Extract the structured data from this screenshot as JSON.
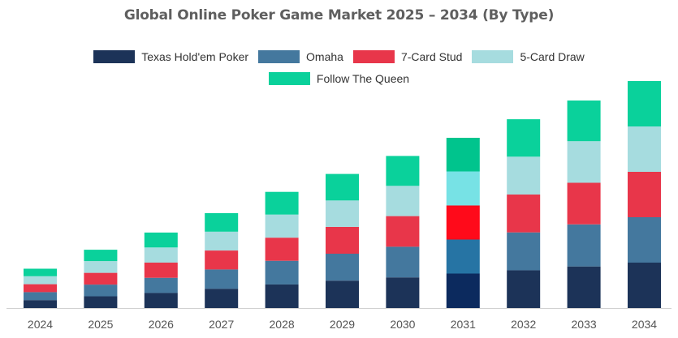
{
  "title": "Global Online Poker Game Market 2025 – 2034 (By Type)",
  "legend": [
    {
      "label": "Texas Hold'em Poker",
      "color": "#1c3358"
    },
    {
      "label": "Omaha",
      "color": "#44789e"
    },
    {
      "label": "7-Card Stud",
      "color": "#e8364a"
    },
    {
      "label": "5-Card Draw",
      "color": "#a6dcdf"
    },
    {
      "label": "Follow The Queen",
      "color": "#0ad19b"
    }
  ],
  "chart_data": {
    "type": "bar",
    "stacked": true,
    "categories": [
      "2024",
      "2025",
      "2026",
      "2027",
      "2028",
      "2029",
      "2030",
      "2031",
      "2032",
      "2033",
      "2034"
    ],
    "series": [
      {
        "name": "Texas Hold'em Poker",
        "color": "#1c3358",
        "values": [
          4.2,
          6.2,
          8.0,
          10.2,
          12.5,
          14.5,
          16.2,
          18.2,
          20.0,
          22.0,
          24.0
        ]
      },
      {
        "name": "Omaha",
        "color": "#44789e",
        "values": [
          4.2,
          6.2,
          8.0,
          10.2,
          12.5,
          14.2,
          16.2,
          18.0,
          20.0,
          22.2,
          24.0
        ]
      },
      {
        "name": "7-Card Stud",
        "color": "#e8364a",
        "values": [
          4.2,
          6.2,
          8.0,
          10.0,
          12.2,
          14.2,
          16.2,
          18.0,
          20.0,
          22.0,
          24.0
        ]
      },
      {
        "name": "5-Card Draw",
        "color": "#a6dcdf",
        "values": [
          4.2,
          6.2,
          8.0,
          10.0,
          12.2,
          14.0,
          16.0,
          18.0,
          20.0,
          22.0,
          24.0
        ]
      },
      {
        "name": "Follow The Queen",
        "color": "#0ad19b",
        "values": [
          4.0,
          6.0,
          7.9,
          9.8,
          12.0,
          14.0,
          15.8,
          17.8,
          19.8,
          21.5,
          24.0
        ]
      }
    ],
    "highlight": {
      "category": "2031",
      "colors": [
        "#0c2a5e",
        "#2674a4",
        "#ff0a1a",
        "#77e2e5",
        "#00c48d"
      ]
    },
    "ylim": [
      0,
      120
    ],
    "xlabel": "",
    "ylabel": "",
    "grid": false,
    "legend_position": "top-center"
  }
}
